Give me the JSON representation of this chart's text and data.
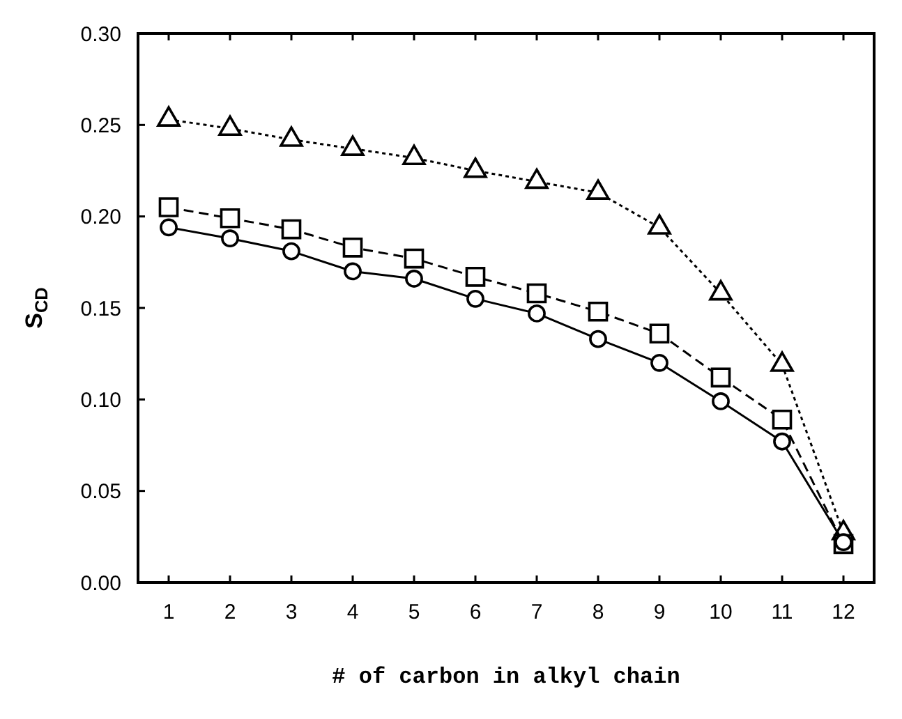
{
  "chart_data": {
    "type": "line",
    "xlabel": "# of carbon in alkyl chain",
    "ylabel": "S$_{CD}$",
    "x": [
      1,
      2,
      3,
      4,
      5,
      6,
      7,
      8,
      9,
      10,
      11,
      12
    ],
    "xlim": [
      0.5,
      12.5
    ],
    "xticks": [
      1,
      2,
      3,
      4,
      5,
      6,
      7,
      8,
      9,
      10,
      11,
      12
    ],
    "ylim": [
      0,
      0.3
    ],
    "yticks": [
      {
        "value": 0,
        "label": "0.00"
      },
      {
        "value": 0.05,
        "label": "0.05"
      },
      {
        "value": 0.1,
        "label": "0.10"
      },
      {
        "value": 0.15,
        "label": "0.15"
      },
      {
        "value": 0.2,
        "label": "0.20"
      },
      {
        "value": 0.25,
        "label": "0.25"
      },
      {
        "value": 0.3,
        "label": "0.30"
      }
    ],
    "grid": false,
    "series": [
      {
        "color": "#000000",
        "marker": "triangle",
        "line_style": "dotted",
        "values": [
          0.253,
          0.248,
          0.242,
          0.237,
          0.232,
          0.225,
          0.219,
          0.213,
          0.194,
          0.158,
          0.119,
          0.027
        ]
      },
      {
        "color": "#000000",
        "marker": "square",
        "line_style": "dashed",
        "values": [
          0.205,
          0.199,
          0.193,
          0.183,
          0.177,
          0.167,
          0.158,
          0.148,
          0.136,
          0.112,
          0.089,
          0.021
        ]
      },
      {
        "color": "#000000",
        "marker": "circle",
        "line_style": "solid",
        "values": [
          0.194,
          0.188,
          0.181,
          0.17,
          0.166,
          0.155,
          0.147,
          0.133,
          0.12,
          0.099,
          0.077,
          0.022
        ]
      }
    ]
  }
}
